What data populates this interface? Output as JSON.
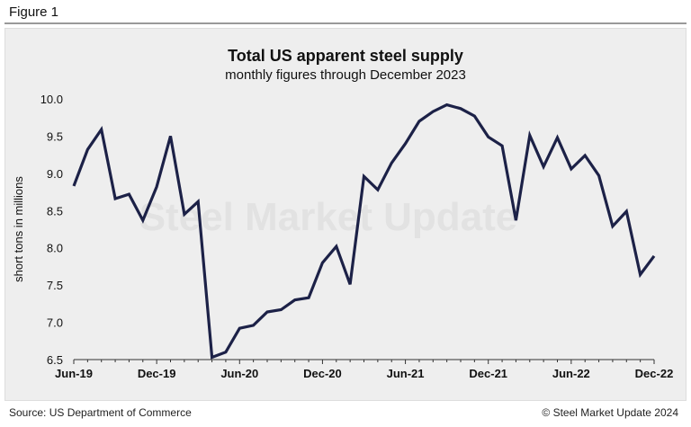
{
  "figure_label": "Figure 1",
  "footer": {
    "source": "Source: US Department of Commerce",
    "copyright": "© Steel Market Update 2024"
  },
  "watermark": "Steel Market Update",
  "chart_data": {
    "type": "line",
    "title": "Total US apparent steel supply",
    "subtitle": "monthly figures through December 2023",
    "ylabel": "short tons in millions",
    "xlabel": "",
    "ylim": [
      6.5,
      10.0
    ],
    "yticks": [
      "6.5",
      "7.0",
      "7.5",
      "8.0",
      "8.5",
      "9.0",
      "9.5",
      "10.0"
    ],
    "xtick_labels": [
      "Jun-19",
      "Dec-19",
      "Jun-20",
      "Dec-20",
      "Jun-21",
      "Dec-21",
      "Jun-22",
      "Dec-22"
    ],
    "x": [
      "Jun-19",
      "Jul-19",
      "Aug-19",
      "Sep-19",
      "Oct-19",
      "Nov-19",
      "Dec-19",
      "Jan-20",
      "Feb-20",
      "Mar-20",
      "Apr-20",
      "May-20",
      "Jun-20",
      "Jul-20",
      "Aug-20",
      "Sep-20",
      "Oct-20",
      "Nov-20",
      "Dec-20",
      "Jan-21",
      "Feb-21",
      "Mar-21",
      "Apr-21",
      "May-21",
      "Jun-21",
      "Jul-21",
      "Aug-21",
      "Sep-21",
      "Oct-21",
      "Nov-21",
      "Dec-21",
      "Jan-22",
      "Feb-22",
      "Mar-22",
      "Apr-22",
      "May-22",
      "Jun-22",
      "Jul-22",
      "Aug-22",
      "Sep-22",
      "Oct-22",
      "Nov-22",
      "Dec-22"
    ],
    "values": [
      8.83,
      9.32,
      9.59,
      8.66,
      8.72,
      8.37,
      8.82,
      9.5,
      8.45,
      8.62,
      6.53,
      6.6,
      6.92,
      6.96,
      7.14,
      7.17,
      7.3,
      7.33,
      7.8,
      8.02,
      7.51,
      8.96,
      8.78,
      9.14,
      9.4,
      9.7,
      9.83,
      9.92,
      9.87,
      9.77,
      9.49,
      9.37,
      8.37,
      9.51,
      9.09,
      9.48,
      9.06,
      9.24,
      8.97,
      8.29,
      8.49,
      7.64,
      7.89
    ],
    "line_color": "#1c2147",
    "grid": false,
    "legend": "none"
  }
}
